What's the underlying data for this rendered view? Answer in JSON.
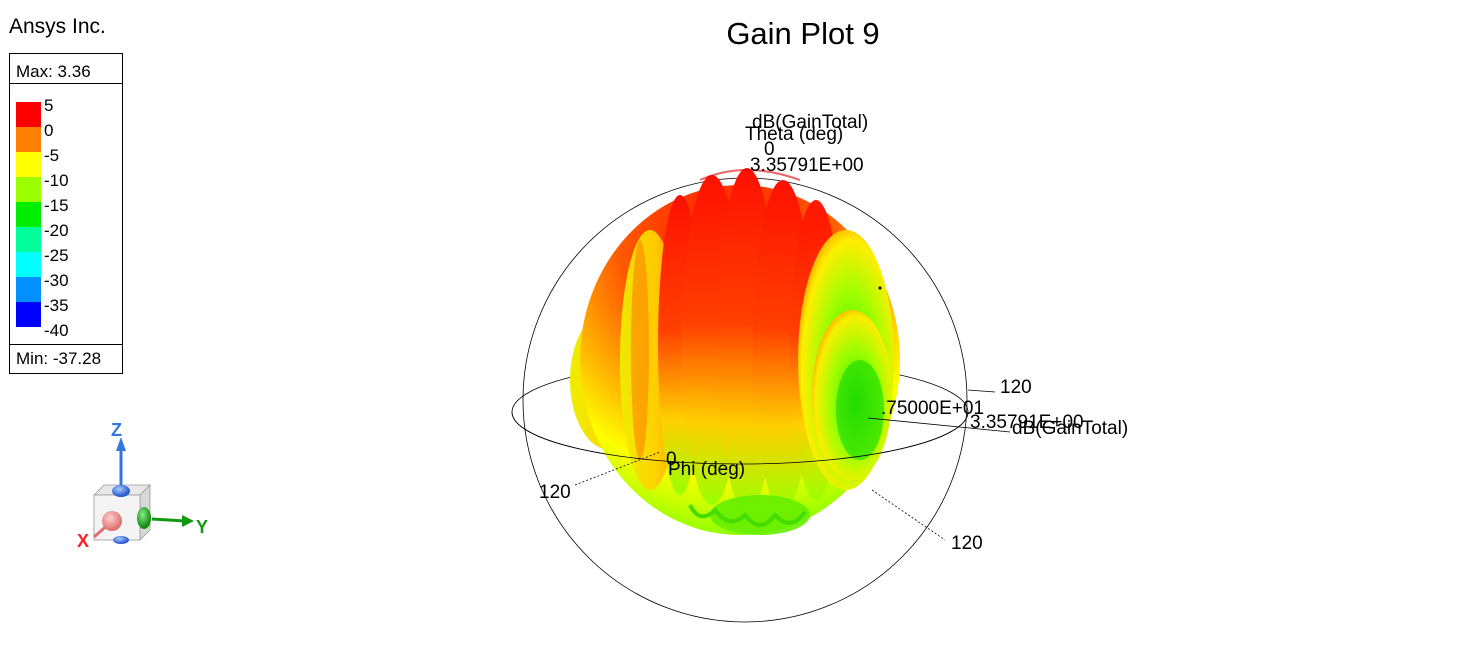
{
  "header": {
    "company": "Ansys Inc.",
    "title": "Gain Plot 9"
  },
  "legend": {
    "max_label": "Max: 3.36",
    "min_label": "Min: -37.28",
    "ticks": [
      "5",
      "0",
      "-5",
      "-10",
      "-15",
      "-20",
      "-25",
      "-30",
      "-35",
      "-40"
    ],
    "colors": [
      "#ff0000",
      "#ff8000",
      "#ffff00",
      "#9bff00",
      "#00ee00",
      "#00ff9a",
      "#00ffff",
      "#0090ff",
      "#0000ff"
    ]
  },
  "axes3d": {
    "theta_axis_title": "dB(GainTotal)",
    "theta_label": "Theta (deg)",
    "theta_zero": "0",
    "theta_value": "3.35791E+00",
    "phi_label": "Phi (deg)",
    "phi_zero": "0",
    "right_tick": "120",
    "radial_value": ".75000E+01",
    "radial_max": "3.35791E+00",
    "radial_title": "dB(GainTotal)",
    "left_tick": "120",
    "bottom_tick": "120"
  },
  "triad": {
    "x_label": "X",
    "y_label": "Y",
    "z_label": "Z",
    "x_color": "#ff2020",
    "y_color": "#119911",
    "z_color": "#3377dd"
  },
  "chart_data": {
    "type": "3d-radiation-pattern",
    "title": "Gain Plot 9",
    "quantity": "dB(GainTotal)",
    "max": 3.36,
    "min": -37.28,
    "colorbar_ticks": [
      5,
      0,
      -5,
      -10,
      -15,
      -20,
      -25,
      -30,
      -35,
      -40
    ],
    "axes": [
      "Theta (deg)",
      "Phi (deg)"
    ]
  }
}
